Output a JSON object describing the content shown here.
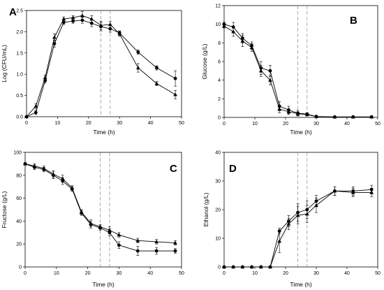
{
  "chart_data": [
    {
      "type": "line",
      "panel": "A",
      "ylabel": "Log (CFU/mL)",
      "xlabel": "Time (h)",
      "xlim": [
        0,
        50
      ],
      "ylim": [
        0,
        2.5
      ],
      "xticks": [
        0,
        10,
        20,
        30,
        40,
        50
      ],
      "yticks": [
        0.0,
        0.5,
        1.0,
        1.5,
        2.0,
        2.5
      ],
      "ytick_labels": [
        "0.0",
        "0.5",
        "1.0",
        "1.5",
        "2.0",
        "2.5"
      ],
      "vlines": [
        24,
        27
      ],
      "series": [
        {
          "marker": "circle",
          "x": [
            0,
            3,
            6,
            9,
            12,
            15,
            18,
            21,
            24,
            27,
            30,
            36,
            42,
            48
          ],
          "y": [
            0.0,
            0.1,
            0.85,
            1.72,
            2.22,
            2.25,
            2.27,
            2.2,
            2.12,
            2.07,
            1.97,
            1.52,
            1.15,
            0.9
          ],
          "err": [
            0.0,
            0.05,
            0.06,
            0.08,
            0.05,
            0.05,
            0.07,
            0.08,
            0.1,
            0.08,
            0.05,
            0.05,
            0.05,
            0.18
          ]
        },
        {
          "marker": "triangle",
          "x": [
            0,
            3,
            6,
            9,
            12,
            15,
            18,
            21,
            24,
            27,
            30,
            36,
            42,
            48
          ],
          "y": [
            0.0,
            0.25,
            0.92,
            1.87,
            2.3,
            2.33,
            2.38,
            2.3,
            2.15,
            2.17,
            1.95,
            1.15,
            0.78,
            0.52
          ],
          "err": [
            0.0,
            0.06,
            0.06,
            0.08,
            0.05,
            0.05,
            0.1,
            0.08,
            0.1,
            0.08,
            0.06,
            0.1,
            0.05,
            0.1
          ]
        }
      ]
    },
    {
      "type": "line",
      "panel": "B",
      "ylabel": "Glucose (g/L)",
      "xlabel": "Time (h)",
      "xlim": [
        0,
        50
      ],
      "ylim": [
        0,
        12
      ],
      "xticks": [
        0,
        10,
        20,
        30,
        40,
        50
      ],
      "yticks": [
        0,
        2,
        4,
        6,
        8,
        10,
        12
      ],
      "ytick_labels": [
        "0",
        "2",
        "4",
        "6",
        "8",
        "10",
        "12"
      ],
      "vlines": [
        24,
        27
      ],
      "series": [
        {
          "marker": "circle",
          "x": [
            0,
            3,
            6,
            9,
            12,
            15,
            18,
            21,
            24,
            27,
            30,
            36,
            42,
            48
          ],
          "y": [
            10.0,
            9.7,
            8.5,
            7.7,
            5.3,
            5.0,
            1.2,
            0.8,
            0.45,
            0.35,
            0.1,
            0.05,
            0.05,
            0.05
          ],
          "err": [
            0.2,
            0.5,
            0.5,
            0.4,
            0.7,
            0.6,
            0.5,
            0.4,
            0.3,
            0.15,
            0.05,
            0.05,
            0.05,
            0.05
          ]
        },
        {
          "marker": "triangle",
          "x": [
            0,
            3,
            6,
            9,
            12,
            15,
            18,
            21,
            24,
            27,
            30,
            36,
            42,
            48
          ],
          "y": [
            9.8,
            9.2,
            8.2,
            7.5,
            5.0,
            4.0,
            0.9,
            0.6,
            0.4,
            0.3,
            0.1,
            0.05,
            0.05,
            0.05
          ],
          "err": [
            0.2,
            0.5,
            0.6,
            0.4,
            0.6,
            0.5,
            0.4,
            0.3,
            0.2,
            0.15,
            0.05,
            0.05,
            0.05,
            0.05
          ]
        }
      ]
    },
    {
      "type": "line",
      "panel": "C",
      "ylabel": "Fructose (g/L)",
      "xlabel": "Time (h)",
      "xlim": [
        0,
        50
      ],
      "ylim": [
        0,
        100
      ],
      "xticks": [
        0,
        10,
        20,
        30,
        40,
        50
      ],
      "yticks": [
        0,
        20,
        40,
        60,
        80,
        100
      ],
      "ytick_labels": [
        "0",
        "20",
        "40",
        "60",
        "80",
        "100"
      ],
      "vlines": [
        24,
        27
      ],
      "series": [
        {
          "marker": "circle",
          "x": [
            0,
            3,
            6,
            9,
            12,
            15,
            18,
            21,
            24,
            27,
            30,
            36,
            42,
            48
          ],
          "y": [
            90,
            87,
            85,
            80,
            75,
            68,
            47,
            37,
            34,
            30,
            19,
            14,
            14,
            14
          ],
          "err": [
            1,
            2,
            2,
            3,
            3,
            2,
            2,
            3,
            2,
            3,
            3,
            4,
            3,
            2
          ]
        },
        {
          "marker": "triangle",
          "x": [
            0,
            3,
            6,
            9,
            12,
            15,
            18,
            21,
            24,
            27,
            30,
            36,
            42,
            48
          ],
          "y": [
            90,
            88,
            86,
            81,
            77,
            69,
            48,
            38,
            35,
            32,
            28,
            23,
            22,
            21
          ],
          "err": [
            1,
            2,
            2,
            3,
            3,
            2,
            2,
            3,
            2,
            3,
            2,
            2,
            2,
            2
          ]
        }
      ]
    },
    {
      "type": "line",
      "panel": "D",
      "ylabel": "Ethanol (g/L)",
      "xlabel": "Time (h)",
      "xlim": [
        0,
        50
      ],
      "ylim": [
        0,
        40
      ],
      "xticks": [
        0,
        10,
        20,
        30,
        40,
        50
      ],
      "yticks": [
        0,
        10,
        20,
        30,
        40
      ],
      "ytick_labels": [
        "0",
        "10",
        "20",
        "30",
        "40"
      ],
      "vlines": [
        24,
        27
      ],
      "series": [
        {
          "marker": "circle",
          "x": [
            0,
            3,
            6,
            9,
            12,
            15,
            18,
            21,
            24,
            27,
            30,
            36,
            42,
            48
          ],
          "y": [
            0,
            0,
            0,
            0,
            0,
            0,
            12.5,
            16,
            19,
            20,
            23,
            26.5,
            26.5,
            27
          ],
          "err": [
            0,
            0,
            0,
            0,
            0,
            0,
            1,
            2,
            3,
            3,
            2,
            1.5,
            1.5,
            1.5
          ]
        },
        {
          "marker": "triangle",
          "x": [
            0,
            3,
            6,
            9,
            12,
            15,
            18,
            21,
            24,
            27,
            30,
            36,
            42,
            48
          ],
          "y": [
            0,
            0,
            0,
            0,
            0,
            0,
            9,
            15,
            18,
            18.5,
            21.5,
            26.5,
            26,
            26
          ],
          "err": [
            0,
            0,
            0,
            0,
            0,
            0,
            4,
            2,
            3,
            3,
            2.5,
            1.5,
            1.5,
            1.5
          ]
        }
      ]
    }
  ]
}
